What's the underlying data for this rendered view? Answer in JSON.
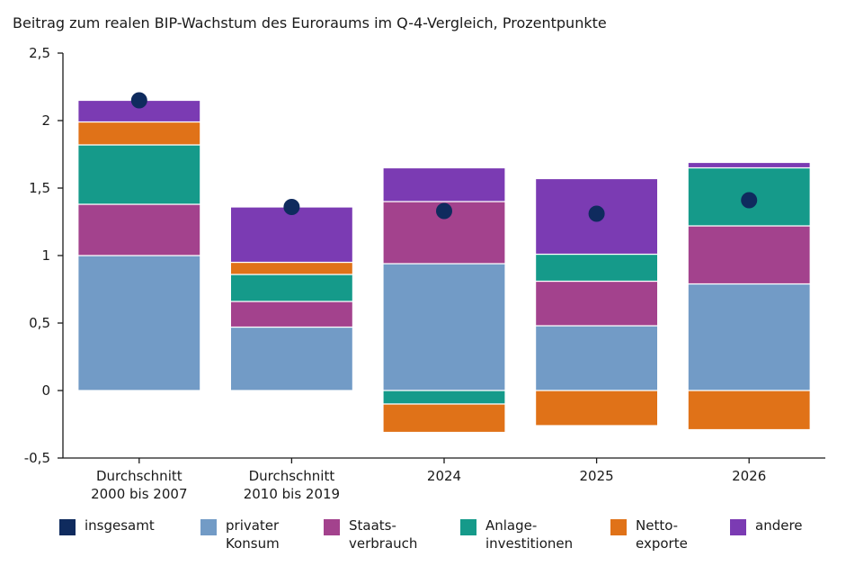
{
  "chart_data": {
    "type": "bar",
    "stacked": true,
    "title": "Beitrag zum realen BIP-Wachstum des Euroraums im Q-4-Vergleich, Prozentpunkte",
    "xlabel": "",
    "ylabel": "",
    "ylim": [
      -0.5,
      2.5
    ],
    "yticks": [
      -0.5,
      0,
      0.5,
      1,
      1.5,
      2,
      2.5
    ],
    "ytick_labels": [
      "-0,5",
      "0",
      "0,5",
      "1",
      "1,5",
      "2",
      "2,5"
    ],
    "categories": [
      "Durchschnitt\n2000 bis 2007",
      "Durchschnitt\n2010 bis 2019",
      "2024",
      "2025",
      "2026"
    ],
    "series": [
      {
        "name": "privater\nKonsum",
        "color": "#729bc6",
        "values": [
          1.0,
          0.47,
          0.94,
          0.48,
          0.79
        ]
      },
      {
        "name": "Staats-\nverbrauch",
        "color": "#a3428d",
        "values": [
          0.38,
          0.19,
          0.46,
          0.33,
          0.43
        ]
      },
      {
        "name": "Anlage-\ninvestitionen",
        "color": "#159a8a",
        "values": [
          0.44,
          0.2,
          -0.1,
          0.2,
          0.43
        ]
      },
      {
        "name": "Netto-\nexporte",
        "color": "#e07218",
        "values": [
          0.17,
          0.09,
          -0.21,
          -0.26,
          -0.29
        ]
      },
      {
        "name": "andere",
        "color": "#7b3bb3",
        "values": [
          0.16,
          0.41,
          0.25,
          0.56,
          0.04
        ]
      }
    ],
    "total": {
      "name": "insgesamt",
      "color": "#0f2b5e",
      "values": [
        2.15,
        1.36,
        1.33,
        1.31,
        1.41
      ]
    },
    "legend": [
      "insgesamt",
      "privater\nKonsum",
      "Staats-\nverbrauch",
      "Anlage-\ninvestitionen",
      "Netto-\nexporte",
      "andere"
    ],
    "legend_position": "bottom",
    "grid": false
  }
}
